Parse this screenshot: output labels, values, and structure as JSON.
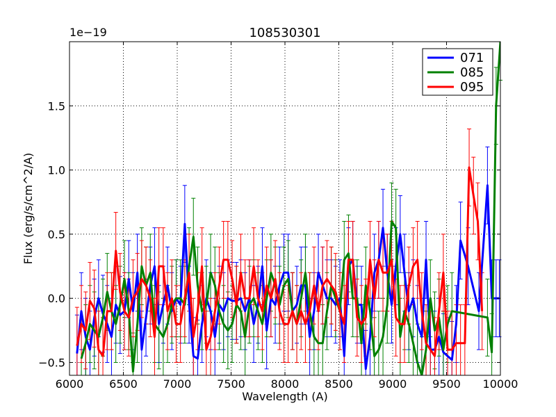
{
  "chart_data": {
    "type": "line",
    "title": "108530301",
    "xlabel": "Wavelength (A)",
    "ylabel": "Flux (erg/s/cm^2/A)",
    "y_exponent_label": "1e−19",
    "xlim": [
      6000,
      10000
    ],
    "ylim": [
      -0.6,
      2.0
    ],
    "x_ticks": [
      6000,
      6500,
      7000,
      7500,
      8000,
      8500,
      9000,
      9500,
      10000
    ],
    "x_tick_labels": [
      "6000",
      "6500",
      "7000",
      "7500",
      "8000",
      "8500",
      "9000",
      "9500",
      "10000"
    ],
    "y_ticks": [
      -0.5,
      0.0,
      0.5,
      1.0,
      1.5
    ],
    "y_tick_labels": [
      "−0.5",
      "0.0",
      "0.5",
      "1.0",
      "1.5"
    ],
    "grid": true,
    "legend_position": "top-right",
    "series": [
      {
        "name": "071",
        "color": "#0000ff",
        "x": [
          6070,
          6110,
          6150,
          6190,
          6230,
          6270,
          6310,
          6350,
          6390,
          6430,
          6470,
          6510,
          6550,
          6590,
          6630,
          6670,
          6710,
          6750,
          6790,
          6830,
          6870,
          6910,
          6950,
          6990,
          7030,
          7070,
          7110,
          7150,
          7190,
          7230,
          7270,
          7310,
          7350,
          7390,
          7430,
          7470,
          7510,
          7550,
          7590,
          7630,
          7670,
          7710,
          7750,
          7790,
          7830,
          7870,
          7910,
          7950,
          7990,
          8030,
          8070,
          8110,
          8150,
          8190,
          8230,
          8270,
          8310,
          8350,
          8390,
          8430,
          8470,
          8510,
          8550,
          8590,
          8630,
          8670,
          8710,
          8750,
          8790,
          8830,
          8870,
          8910,
          8950,
          8990,
          9030,
          9070,
          9110,
          9150,
          9190,
          9230,
          9270,
          9310,
          9350,
          9390,
          9430,
          9470,
          9510,
          9550,
          9590,
          9630,
          9700,
          9800,
          9880,
          9920,
          9960,
          9990
        ],
        "values": [
          -0.43,
          -0.1,
          -0.3,
          -0.4,
          -0.15,
          0.0,
          -0.12,
          -0.2,
          -0.3,
          -0.05,
          -0.13,
          -0.1,
          0.15,
          -0.1,
          0.2,
          -0.4,
          -0.15,
          0.1,
          0.25,
          -0.2,
          -0.05,
          0.1,
          -0.1,
          0.0,
          -0.05,
          0.58,
          -0.05,
          -0.45,
          -0.47,
          -0.2,
          0.0,
          -0.1,
          -0.3,
          -0.05,
          -0.1,
          0.0,
          -0.02,
          -0.02,
          0.0,
          -0.1,
          0.0,
          -0.2,
          -0.05,
          0.25,
          -0.25,
          0.0,
          -0.05,
          0.1,
          0.2,
          0.2,
          -0.1,
          -0.05,
          0.1,
          0.1,
          -0.3,
          -0.1,
          0.2,
          0.1,
          0.0,
          0.0,
          -0.05,
          0.0,
          -0.45,
          0.25,
          0.3,
          -0.05,
          -0.05,
          -0.55,
          -0.3,
          0.2,
          0.3,
          0.55,
          0.2,
          -0.05,
          0.25,
          0.5,
          0.2,
          -0.1,
          0.0,
          -0.2,
          -0.3,
          0.3,
          -0.4,
          -0.4,
          -0.3,
          -0.42,
          -0.45,
          -0.48,
          -0.2,
          0.45,
          0.25,
          -0.1,
          0.88,
          0.0,
          0.0,
          0.0
        ],
        "errors": [
          0.3,
          0.3,
          0.3,
          0.3,
          0.3,
          0.3,
          0.3,
          0.3,
          0.3,
          0.3,
          0.3,
          0.3,
          0.3,
          0.3,
          0.3,
          0.3,
          0.3,
          0.3,
          0.3,
          0.3,
          0.3,
          0.3,
          0.3,
          0.3,
          0.3,
          0.3,
          0.3,
          0.3,
          0.3,
          0.3,
          0.3,
          0.3,
          0.3,
          0.3,
          0.3,
          0.3,
          0.3,
          0.3,
          0.3,
          0.3,
          0.3,
          0.3,
          0.3,
          0.3,
          0.3,
          0.3,
          0.3,
          0.3,
          0.3,
          0.3,
          0.3,
          0.3,
          0.3,
          0.3,
          0.3,
          0.3,
          0.3,
          0.3,
          0.3,
          0.3,
          0.3,
          0.3,
          0.3,
          0.3,
          0.3,
          0.3,
          0.3,
          0.3,
          0.3,
          0.3,
          0.3,
          0.3,
          0.3,
          0.3,
          0.3,
          0.3,
          0.3,
          0.3,
          0.3,
          0.3,
          0.3,
          0.3,
          0.3,
          0.3,
          0.3,
          0.3,
          0.3,
          0.3,
          0.3,
          0.3,
          0.3,
          0.3,
          0.3,
          0.3,
          0.3,
          0.3
        ]
      },
      {
        "name": "085",
        "color": "#008000",
        "x": [
          6110,
          6150,
          6190,
          6230,
          6270,
          6310,
          6350,
          6390,
          6430,
          6470,
          6510,
          6550,
          6590,
          6630,
          6670,
          6710,
          6750,
          6790,
          6830,
          6870,
          6910,
          6950,
          6990,
          7030,
          7070,
          7110,
          7150,
          7190,
          7230,
          7270,
          7310,
          7350,
          7390,
          7430,
          7470,
          7510,
          7550,
          7590,
          7630,
          7670,
          7710,
          7750,
          7790,
          7830,
          7870,
          7910,
          7950,
          7990,
          8030,
          8070,
          8110,
          8150,
          8190,
          8230,
          8270,
          8310,
          8350,
          8390,
          8430,
          8470,
          8510,
          8550,
          8590,
          8630,
          8670,
          8710,
          8750,
          8790,
          8830,
          8870,
          8910,
          8950,
          8990,
          9030,
          9070,
          9110,
          9150,
          9190,
          9230,
          9270,
          9310,
          9350,
          9390,
          9430,
          9470,
          9510,
          9550,
          9880,
          9920,
          9960,
          10000
        ],
        "values": [
          -0.47,
          -0.35,
          -0.2,
          -0.25,
          -0.3,
          -0.15,
          0.05,
          -0.1,
          -0.2,
          -0.05,
          0.15,
          -0.1,
          -0.57,
          -0.2,
          0.25,
          0.1,
          0.2,
          -0.2,
          -0.25,
          -0.3,
          -0.2,
          -0.05,
          0.0,
          0.0,
          -0.05,
          0.25,
          0.48,
          0.1,
          -0.1,
          -0.05,
          0.2,
          0.1,
          -0.1,
          -0.2,
          -0.25,
          -0.2,
          -0.05,
          -0.1,
          -0.3,
          -0.05,
          0.0,
          -0.1,
          -0.2,
          0.0,
          0.2,
          0.1,
          -0.05,
          0.1,
          0.15,
          -0.1,
          -0.2,
          0.0,
          0.2,
          -0.1,
          -0.3,
          -0.35,
          -0.35,
          -0.1,
          0.1,
          0.0,
          -0.1,
          0.3,
          0.35,
          0.0,
          0.0,
          -0.35,
          0.1,
          -0.1,
          -0.45,
          -0.4,
          -0.3,
          -0.05,
          0.6,
          0.55,
          -0.3,
          -0.1,
          -0.2,
          -0.35,
          -0.5,
          -0.6,
          -0.4,
          0.0,
          -0.25,
          -0.15,
          -0.4,
          -0.2,
          -0.1,
          -0.15,
          -0.42,
          1.5,
          2.0
        ],
        "errors": [
          0.3,
          0.3,
          0.3,
          0.3,
          0.3,
          0.3,
          0.3,
          0.3,
          0.3,
          0.3,
          0.3,
          0.3,
          0.3,
          0.3,
          0.3,
          0.3,
          0.3,
          0.3,
          0.3,
          0.3,
          0.3,
          0.3,
          0.3,
          0.3,
          0.3,
          0.3,
          0.3,
          0.3,
          0.3,
          0.3,
          0.3,
          0.3,
          0.3,
          0.3,
          0.3,
          0.3,
          0.3,
          0.3,
          0.3,
          0.3,
          0.3,
          0.3,
          0.3,
          0.3,
          0.3,
          0.3,
          0.3,
          0.3,
          0.3,
          0.3,
          0.3,
          0.3,
          0.3,
          0.3,
          0.3,
          0.3,
          0.3,
          0.3,
          0.3,
          0.3,
          0.3,
          0.3,
          0.3,
          0.3,
          0.3,
          0.3,
          0.3,
          0.3,
          0.3,
          0.3,
          0.3,
          0.3,
          0.3,
          0.3,
          0.3,
          0.3,
          0.3,
          0.3,
          0.3,
          0.3,
          0.3,
          0.3,
          0.3,
          0.3,
          0.3,
          0.3,
          0.3,
          0.3,
          0.3,
          0.3,
          0.3
        ]
      },
      {
        "name": "095",
        "color": "#ff0000",
        "x": [
          6070,
          6110,
          6150,
          6190,
          6230,
          6270,
          6310,
          6350,
          6390,
          6430,
          6470,
          6510,
          6550,
          6590,
          6630,
          6670,
          6710,
          6750,
          6790,
          6830,
          6870,
          6910,
          6950,
          6990,
          7030,
          7070,
          7110,
          7150,
          7190,
          7230,
          7270,
          7310,
          7350,
          7390,
          7430,
          7470,
          7510,
          7550,
          7590,
          7630,
          7670,
          7710,
          7750,
          7790,
          7830,
          7870,
          7910,
          7950,
          7990,
          8030,
          8070,
          8110,
          8150,
          8190,
          8230,
          8270,
          8310,
          8350,
          8390,
          8430,
          8470,
          8510,
          8550,
          8590,
          8630,
          8670,
          8710,
          8750,
          8790,
          8830,
          8870,
          8910,
          8950,
          8990,
          9030,
          9070,
          9110,
          9150,
          9190,
          9230,
          9270,
          9310,
          9350,
          9390,
          9430,
          9470,
          9510,
          9550,
          9590,
          9630,
          9670,
          9710,
          9750,
          9790,
          9830
        ],
        "values": [
          -0.37,
          -0.2,
          -0.25,
          -0.02,
          -0.08,
          -0.4,
          -0.45,
          -0.1,
          -0.1,
          0.37,
          0.05,
          -0.1,
          -0.15,
          0.0,
          0.05,
          0.15,
          0.1,
          0.0,
          -0.3,
          0.25,
          0.25,
          -0.1,
          0.0,
          -0.2,
          -0.2,
          0.0,
          0.2,
          -0.3,
          -0.1,
          0.25,
          -0.4,
          -0.3,
          -0.1,
          0.1,
          0.3,
          0.3,
          0.15,
          -0.05,
          0.2,
          0.0,
          0.0,
          0.25,
          0.0,
          -0.1,
          0.1,
          0.0,
          0.15,
          -0.1,
          -0.2,
          -0.2,
          -0.1,
          -0.2,
          -0.1,
          -0.2,
          -0.1,
          0.1,
          -0.1,
          0.1,
          0.15,
          0.1,
          0.05,
          -0.1,
          -0.2,
          0.3,
          0.3,
          -0.15,
          -0.2,
          -0.15,
          0.3,
          0.0,
          0.3,
          0.2,
          0.2,
          0.3,
          -0.15,
          -0.2,
          -0.2,
          0.1,
          0.25,
          0.3,
          -0.1,
          -0.35,
          -0.4,
          -0.45,
          -0.1,
          0.2,
          -0.4,
          -0.4,
          -0.35,
          -0.35,
          -0.35,
          1.02,
          0.8,
          0.6,
          -0.1
        ],
        "errors": [
          0.3,
          0.3,
          0.3,
          0.3,
          0.3,
          0.3,
          0.3,
          0.3,
          0.3,
          0.3,
          0.3,
          0.3,
          0.3,
          0.3,
          0.3,
          0.3,
          0.3,
          0.3,
          0.3,
          0.3,
          0.3,
          0.3,
          0.3,
          0.3,
          0.3,
          0.3,
          0.3,
          0.3,
          0.3,
          0.3,
          0.3,
          0.3,
          0.3,
          0.3,
          0.3,
          0.3,
          0.3,
          0.3,
          0.3,
          0.3,
          0.3,
          0.3,
          0.3,
          0.3,
          0.3,
          0.3,
          0.3,
          0.3,
          0.3,
          0.3,
          0.3,
          0.3,
          0.3,
          0.3,
          0.3,
          0.3,
          0.3,
          0.3,
          0.3,
          0.3,
          0.3,
          0.3,
          0.3,
          0.3,
          0.3,
          0.3,
          0.3,
          0.3,
          0.3,
          0.3,
          0.3,
          0.3,
          0.3,
          0.3,
          0.3,
          0.3,
          0.3,
          0.3,
          0.3,
          0.3,
          0.3,
          0.3,
          0.3,
          0.3,
          0.3,
          0.3,
          0.3,
          0.3,
          0.3,
          0.3,
          0.3,
          0.3,
          0.3,
          0.3,
          0.3
        ]
      }
    ]
  }
}
